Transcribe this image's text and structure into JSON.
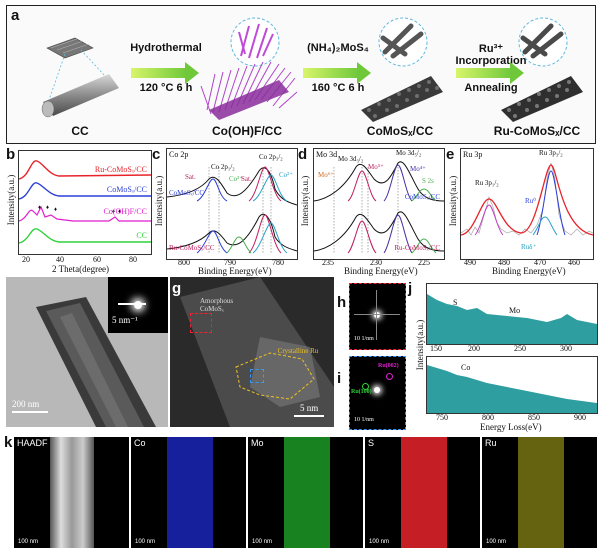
{
  "panels": {
    "a": "a",
    "b": "b",
    "c": "c",
    "d": "d",
    "e": "e",
    "f": "f",
    "g": "g",
    "h": "h",
    "i": "i",
    "j": "j",
    "k": "k"
  },
  "scheme": {
    "stages": [
      "CC",
      "Co(OH)F/CC",
      "CoMoSₓ/CC",
      "Ru-CoMoSₓ/CC"
    ],
    "steps": [
      {
        "top": "Hydrothermal",
        "bottom": "120 °C 6 h"
      },
      {
        "top": "(NH₄)₂MoS₄",
        "bottom": "160 °C 6 h"
      },
      {
        "top": "Ru³⁺ Incorporation",
        "bottom": "Annealing"
      }
    ]
  },
  "xrd": {
    "ylabel": "Intensity(a.u.)",
    "xlabel": "2 Theta(degree)",
    "xticks": [
      "20",
      "40",
      "60",
      "80"
    ],
    "series": [
      "Ru-CoMoSₓ/CC",
      "CoMoSₓ/CC",
      "Co(OH)F/CC",
      "CC"
    ],
    "colors": [
      "#e8232a",
      "#2a3fd6",
      "#e11fd0",
      "#2fd23a"
    ]
  },
  "co2p": {
    "title": "Co 2p",
    "ylabel": "Intensity(a.u.)",
    "xlabel": "Binding Energy(eV)",
    "xticks": [
      "800",
      "790",
      "780"
    ],
    "labels": [
      "Co 2p₁/₂",
      "Co 2p₃/₂",
      "Sat.",
      "Sat.",
      "Co³⁺",
      "Co²⁺",
      "Co³⁺",
      "Co²⁺",
      "Sat."
    ],
    "sample_top": "CoMoSₓ/CC",
    "sample_bottom": "Ru-CoMoSₓ/CC"
  },
  "mo3d": {
    "title": "Mo 3d",
    "ylabel": "Intensity(a.u.)",
    "xlabel": "Binding Energy(eV)",
    "xticks": [
      "235",
      "230",
      "225"
    ],
    "labels": [
      "Mo 3d₃/₂",
      "Mo 3d₅/₂",
      "Mo⁶⁺",
      "Mo⁵⁺",
      "Mo⁴⁺",
      "S 2s"
    ],
    "sample_top": "CoMoSₓ/CC",
    "sample_bottom": "Ru-CoMoSₓ/CC"
  },
  "ru3p": {
    "title": "Ru 3p",
    "ylabel": "Intensity(a.u.)",
    "xlabel": "Binding Energy(eV)",
    "xticks": [
      "490",
      "480",
      "470",
      "460"
    ],
    "labels": [
      "Ru 3p₁/₂",
      "Ru 3p₃/₂",
      "Ru⁰",
      "Ruδ⁺"
    ]
  },
  "tem_f": {
    "scale": "200 nm",
    "inset": "5 nm⁻¹"
  },
  "tem_g": {
    "amorphous": "Amorphous CoMoSₓ",
    "crystalline": "Crystalline Ru",
    "scale": "5 nm"
  },
  "fft_h": {
    "scale": "10 1/nm"
  },
  "fft_i": {
    "scale": "10 1/nm",
    "ru100": "Ru(100)",
    "ru002": "Ru(002)"
  },
  "eels": {
    "ylabel": "Intensity(a.u.)",
    "xlabel": "Energy Loss(eV)",
    "top_ticks": [
      "150",
      "200",
      "250",
      "300"
    ],
    "bottom_ticks": [
      "750",
      "800",
      "850",
      "900"
    ],
    "s": "S",
    "mo": "Mo",
    "co": "Co"
  },
  "maps": [
    {
      "label": "HAADF",
      "scale": "100 nm"
    },
    {
      "label": "Co",
      "scale": "100 nm"
    },
    {
      "label": "Mo",
      "scale": "100 nm"
    },
    {
      "label": "S",
      "scale": "100 nm"
    },
    {
      "label": "Ru",
      "scale": "100 nm"
    }
  ]
}
